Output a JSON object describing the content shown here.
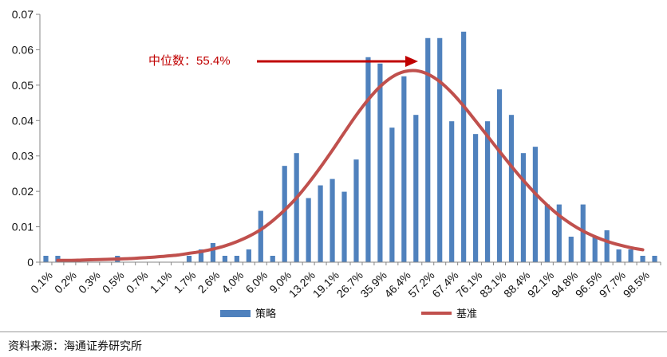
{
  "chart_data": {
    "type": "bar",
    "categories": [
      "0.1%",
      "0.1%",
      "0.2%",
      "0.2%",
      "0.3%",
      "0.3%",
      "0.5%",
      "0.5%",
      "0.7%",
      "0.7%",
      "1.1%",
      "1.1%",
      "1.7%",
      "1.7%",
      "2.6%",
      "2.6%",
      "4.0%",
      "4.0%",
      "6.0%",
      "6.0%",
      "9.0%",
      "9.0%",
      "13.2%",
      "13.2%",
      "19.1%",
      "19.1%",
      "26.7%",
      "26.7%",
      "35.9%",
      "35.9%",
      "46.4%",
      "46.4%",
      "57.2%",
      "57.2%",
      "67.4%",
      "67.4%",
      "76.1%",
      "76.1%",
      "83.1%",
      "83.1%",
      "88.4%",
      "88.4%",
      "92.1%",
      "92.1%",
      "94.8%",
      "94.8%",
      "96.5%",
      "96.5%",
      "97.7%",
      "97.7%",
      "98.5%",
      "98.5%"
    ],
    "tick_labels": [
      "0.1%",
      "0.2%",
      "0.3%",
      "0.5%",
      "0.7%",
      "1.1%",
      "1.7%",
      "2.6%",
      "4.0%",
      "6.0%",
      "9.0%",
      "13.2%",
      "19.1%",
      "26.7%",
      "35.9%",
      "46.4%",
      "57.2%",
      "67.4%",
      "76.1%",
      "83.1%",
      "88.4%",
      "92.1%",
      "94.8%",
      "96.5%",
      "97.7%",
      "98.5%"
    ],
    "series": [
      {
        "name": "策略",
        "type": "bar",
        "color": "#4F81BD",
        "values": [
          0.0018,
          0.0018,
          0,
          0,
          0,
          0,
          0.0018,
          0,
          0,
          0,
          0,
          0,
          0.0018,
          0.0036,
          0.0054,
          0.0018,
          0.0018,
          0.0036,
          0.0145,
          0.0018,
          0.0272,
          0.0308,
          0.0181,
          0.0217,
          0.0235,
          0.0199,
          0.029,
          0.0579,
          0.0561,
          0.038,
          0.0525,
          0.0416,
          0.0633,
          0.0633,
          0.0398,
          0.0651,
          0.0362,
          0.0398,
          0.0488,
          0.0416,
          0.0308,
          0.0326,
          0.0163,
          0.0163,
          0.0072,
          0.0163,
          0.0072,
          0.009,
          0.0036,
          0.0036,
          0.0018,
          0.0018
        ]
      },
      {
        "name": "基准",
        "type": "line",
        "color": "#C0504D",
        "values": [
          null,
          0.0005,
          0.0005,
          0.0006,
          0.0007,
          0.0008,
          0.0009,
          0.001,
          0.0012,
          0.0014,
          0.0017,
          0.002,
          0.0025,
          0.003,
          0.0037,
          0.0046,
          0.0058,
          0.0073,
          0.0092,
          0.0117,
          0.0147,
          0.0182,
          0.0223,
          0.0268,
          0.0316,
          0.0366,
          0.0415,
          0.0459,
          0.0496,
          0.0523,
          0.0538,
          0.0541,
          0.0531,
          0.051,
          0.0479,
          0.0441,
          0.0399,
          0.0356,
          0.0313,
          0.0271,
          0.0231,
          0.0194,
          0.0161,
          0.0132,
          0.0108,
          0.0088,
          0.0072,
          0.0059,
          0.0049,
          0.0041,
          0.0035,
          null
        ]
      }
    ],
    "ylim": [
      0,
      0.07
    ],
    "yticks": [
      "0",
      "0.01",
      "0.02",
      "0.03",
      "0.04",
      "0.05",
      "0.06",
      "0.07"
    ],
    "annotation": {
      "text": "中位数：",
      "value": "55.4%",
      "color": "#C00000"
    },
    "legend": {
      "position": "bottom"
    },
    "grid": false
  },
  "footer": {
    "source": "资料来源：海通证券研究所"
  }
}
